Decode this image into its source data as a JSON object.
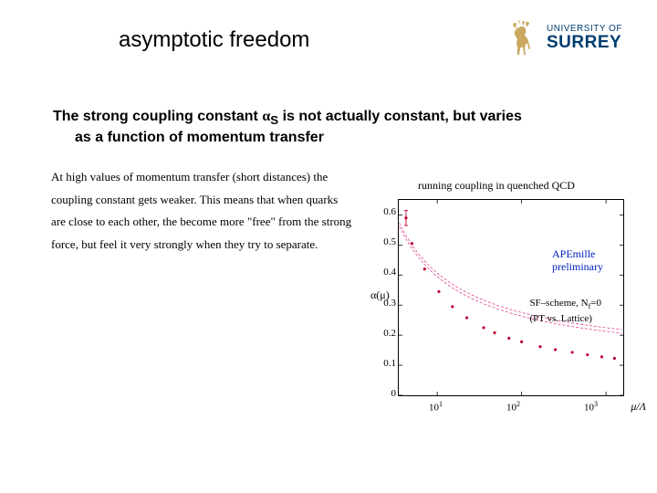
{
  "title": "asymptotic freedom",
  "logo": {
    "line1": "UNIVERSITY OF",
    "line2": "SURREY",
    "stag_color": "#c9a961",
    "text_color": "#003d6f"
  },
  "main_statement_part1": "The strong coupling constant ",
  "main_statement_alpha": "α",
  "main_statement_sub": "S",
  "main_statement_part2": " is not actually constant, but varies",
  "main_statement_line2": "as a function of momentum transfer",
  "body_text": "At high values of momentum transfer (short distances) the coupling constant gets weaker.  This means that when quarks are close to each other, the become more \"free\" from the strong force, but feel it very strongly when they try to separate.",
  "chart": {
    "title": "running coupling in quenched QCD",
    "type": "scatter-with-curve",
    "ylabel": "α(μ)",
    "xlabel": "μ/Λ",
    "xscale": "log",
    "xlim": [
      3.5,
      1600
    ],
    "ylim": [
      0,
      0.65
    ],
    "yticks": [
      0,
      0.1,
      0.2,
      0.3,
      0.4,
      0.5,
      0.6
    ],
    "xticks": [
      10,
      100,
      1000
    ],
    "xtick_labels": [
      "10¹",
      "10²",
      "10³"
    ],
    "background_color": "#ffffff",
    "frame_color": "#000000",
    "point_color": "#c00030",
    "curve_color": "#e04090",
    "curve_dash": "3 2",
    "point_radius": 1.6,
    "error_bar_point": {
      "logx": 0.63,
      "y": 0.59,
      "err": 0.025
    },
    "points": [
      {
        "logx": 0.7,
        "y": 0.505
      },
      {
        "logx": 0.85,
        "y": 0.42
      },
      {
        "logx": 1.02,
        "y": 0.345
      },
      {
        "logx": 1.18,
        "y": 0.295
      },
      {
        "logx": 1.35,
        "y": 0.258
      },
      {
        "logx": 1.55,
        "y": 0.225
      },
      {
        "logx": 1.68,
        "y": 0.208
      },
      {
        "logx": 1.85,
        "y": 0.19
      },
      {
        "logx": 2.0,
        "y": 0.178
      },
      {
        "logx": 2.22,
        "y": 0.162
      },
      {
        "logx": 2.4,
        "y": 0.152
      },
      {
        "logx": 2.6,
        "y": 0.143
      },
      {
        "logx": 2.78,
        "y": 0.135
      },
      {
        "logx": 2.95,
        "y": 0.128
      },
      {
        "logx": 3.1,
        "y": 0.123
      }
    ],
    "annotation1_line1": "APEmille",
    "annotation1_line2": "preliminary",
    "annotation2_line1": "SF–scheme, N",
    "annotation2_sub": "f",
    "annotation2_line1b": "=0",
    "annotation2_line2": "(PT vs. Lattice)",
    "annot1_color": "#0020c0",
    "title_fontsize": 12,
    "tick_fontsize": 11
  }
}
